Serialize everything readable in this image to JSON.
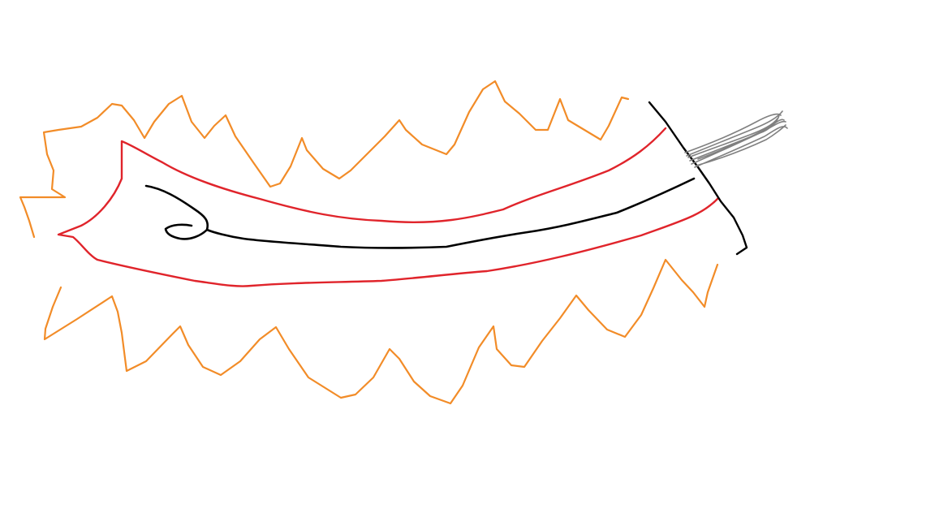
{
  "colors": {
    "background": "#ffffff",
    "flame": "#f28c28",
    "blade": "#e0242b",
    "edge": "#000000",
    "guard": "#000000",
    "tassel": "#808080"
  }
}
